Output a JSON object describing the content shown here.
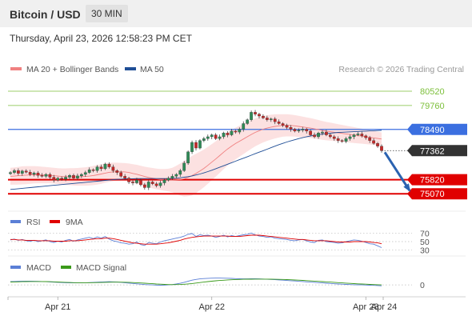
{
  "header": {
    "title": "Bitcoin / USD",
    "interval": "30 MIN"
  },
  "datetime": "Thursday, April 23, 2026 12:58:23 PM CET",
  "legend": {
    "items": [
      {
        "label": "MA 20 + Bollinger Bands",
        "color": "#f08080"
      },
      {
        "label": "MA 50",
        "color": "#1f4e96"
      }
    ],
    "credit": "Research © 2026 Trading Central"
  },
  "chart_data": [
    {
      "type": "candlestick",
      "title": "Bitcoin / USD",
      "interval": "30 MIN",
      "x_ticks": [
        "Apr 21",
        "Apr 22",
        "Apr 23",
        "Apr 24"
      ],
      "ylim": [
        74400,
        81200
      ],
      "grid": false,
      "levels": [
        {
          "value": 80520,
          "label": "80520",
          "kind": "resistance",
          "color": "#7cbf3a"
        },
        {
          "value": 79760,
          "label": "79760",
          "kind": "resistance",
          "color": "#7cbf3a"
        },
        {
          "value": 78490,
          "label": "78490",
          "kind": "pivot",
          "color": "#3b6fe0"
        },
        {
          "value": 77362,
          "label": "77362",
          "kind": "last",
          "color": "#333333"
        },
        {
          "value": 75820,
          "label": "75820",
          "kind": "support",
          "color": "#e00000"
        },
        {
          "value": 75070,
          "label": "75070",
          "kind": "support",
          "color": "#e00000"
        }
      ],
      "close": [
        76200,
        76300,
        76150,
        76280,
        76220,
        76100,
        76180,
        76050,
        76000,
        76100,
        75950,
        75800,
        75900,
        75850,
        75950,
        76050,
        75900,
        76020,
        76100,
        76200,
        76350,
        76300,
        76500,
        76400,
        76650,
        76500,
        76300,
        76200,
        76000,
        75900,
        75700,
        75650,
        75800,
        75550,
        75400,
        75700,
        75600,
        75500,
        75650,
        75800,
        75900,
        76000,
        76100,
        76300,
        76700,
        77300,
        77800,
        77500,
        77900,
        78000,
        78100,
        78200,
        78000,
        78100,
        78300,
        78200,
        78400,
        78350,
        78500,
        78800,
        79000,
        79400,
        79300,
        79200,
        79100,
        79000,
        79050,
        78900,
        78800,
        78700,
        78600,
        78500,
        78400,
        78450,
        78500,
        78400,
        78200,
        78100,
        78300,
        78350,
        78200,
        78100,
        78000,
        77900,
        77850,
        78000,
        78100,
        78200,
        78250,
        78150,
        78050,
        77900,
        77750,
        77600,
        77362
      ],
      "ma20": {
        "color": "#f08080",
        "values": [
          76000,
          76010,
          76030,
          76050,
          76060,
          76070,
          76080,
          76080,
          76070,
          76060,
          76050,
          76030,
          76010,
          75990,
          75980,
          75980,
          75970,
          75970,
          75980,
          75990,
          76010,
          76040,
          76080,
          76120,
          76170,
          76210,
          76230,
          76240,
          76240,
          76230,
          76200,
          76150,
          76110,
          76050,
          75990,
          75940,
          75900,
          75860,
          75830,
          75810,
          75800,
          75800,
          75810,
          75830,
          75870,
          75940,
          76040,
          76150,
          76280,
          76420,
          76580,
          76750,
          76920,
          77100,
          77280,
          77450,
          77600,
          77740,
          77860,
          77980,
          78100,
          78220,
          78330,
          78420,
          78500,
          78560,
          78610,
          78650,
          78680,
          78700,
          78710,
          78700,
          78680,
          78650,
          78620,
          78590,
          78560,
          78520,
          78480,
          78440,
          78400,
          78370,
          78340,
          78310,
          78280,
          78250,
          78220,
          78190,
          78160,
          78130,
          78100,
          78070,
          78040,
          78010,
          77980
        ]
      },
      "bollinger": {
        "color": "#fbdada",
        "width": [
          450,
          460,
          470,
          480,
          480,
          470,
          460,
          450,
          440,
          430,
          420,
          420,
          420,
          430,
          440,
          450,
          460,
          470,
          480,
          490,
          500,
          510,
          520,
          520,
          510,
          500,
          490,
          480,
          470,
          470,
          480,
          490,
          500,
          510,
          520,
          530,
          540,
          550,
          560,
          580,
          600,
          650,
          750,
          850,
          950,
          1000,
          1050,
          1050,
          1020,
          1000,
          980,
          960,
          940,
          920,
          900,
          880,
          860,
          840,
          820,
          800,
          780,
          760,
          740,
          720,
          700,
          680,
          660,
          640,
          620,
          600,
          590,
          580,
          570,
          560,
          550,
          540,
          530,
          520,
          510,
          500,
          490,
          480,
          470,
          460,
          450,
          440,
          430,
          420,
          410,
          400,
          390,
          380,
          370,
          360,
          350
        ]
      },
      "ma50": {
        "color": "#1f4e96",
        "values": [
          75300,
          75320,
          75340,
          75360,
          75380,
          75400,
          75420,
          75440,
          75460,
          75480,
          75500,
          75520,
          75540,
          75560,
          75580,
          75600,
          75620,
          75640,
          75660,
          75680,
          75700,
          75720,
          75740,
          75760,
          75780,
          75800,
          75820,
          75840,
          75850,
          75860,
          75870,
          75870,
          75880,
          75880,
          75880,
          75880,
          75880,
          75880,
          75880,
          75880,
          75880,
          75890,
          75900,
          75920,
          75950,
          75980,
          76020,
          76070,
          76120,
          76180,
          76250,
          76320,
          76400,
          76480,
          76560,
          76640,
          76720,
          76800,
          76880,
          76960,
          77040,
          77120,
          77200,
          77280,
          77360,
          77440,
          77520,
          77600,
          77680,
          77750,
          77820,
          77880,
          77940,
          78000,
          78050,
          78100,
          78140,
          78180,
          78210,
          78240,
          78270,
          78290,
          78310,
          78330,
          78340,
          78350,
          78360,
          78370,
          78380,
          78390,
          78400,
          78410,
          78420,
          78430,
          78440
        ]
      },
      "forecast": {
        "from": 77362,
        "to": 75070
      }
    },
    {
      "type": "line",
      "legend": [
        {
          "name": "RSI",
          "color": "#5b7fd6"
        },
        {
          "name": "9MA",
          "color": "#e00000"
        }
      ],
      "ylim": [
        20,
        80
      ],
      "levels": [
        70,
        50,
        30
      ],
      "series": [
        {
          "name": "RSI",
          "color": "#5b7fd6",
          "values": [
            54,
            56,
            53,
            55,
            52,
            51,
            53,
            50,
            52,
            54,
            50,
            48,
            51,
            49,
            53,
            55,
            51,
            54,
            56,
            58,
            60,
            57,
            61,
            58,
            62,
            56,
            52,
            50,
            47,
            46,
            44,
            45,
            49,
            43,
            41,
            48,
            46,
            45,
            49,
            52,
            54,
            56,
            58,
            60,
            63,
            67,
            69,
            62,
            66,
            64,
            65,
            63,
            60,
            62,
            65,
            61,
            64,
            62,
            64,
            66,
            67,
            70,
            66,
            63,
            62,
            60,
            61,
            58,
            57,
            56,
            55,
            53,
            52,
            54,
            55,
            52,
            49,
            48,
            53,
            54,
            50,
            49,
            48,
            46,
            47,
            50,
            52,
            54,
            53,
            51,
            48,
            45,
            44,
            40,
            36
          ]
        },
        {
          "name": "9MA",
          "color": "#e00000",
          "values": [
            55,
            55,
            54,
            54,
            53,
            53,
            53,
            52,
            52,
            52,
            52,
            51,
            51,
            51,
            51,
            52,
            52,
            52,
            53,
            54,
            55,
            56,
            57,
            57,
            58,
            58,
            57,
            55,
            53,
            51,
            49,
            47,
            46,
            45,
            44,
            44,
            44,
            44,
            45,
            46,
            47,
            49,
            51,
            53,
            56,
            58,
            60,
            61,
            62,
            63,
            63,
            63,
            63,
            63,
            63,
            63,
            62,
            62,
            62,
            63,
            64,
            65,
            65,
            65,
            64,
            63,
            62,
            61,
            60,
            59,
            58,
            57,
            56,
            55,
            55,
            54,
            53,
            52,
            52,
            52,
            52,
            51,
            50,
            49,
            49,
            49,
            49,
            50,
            50,
            50,
            50,
            49,
            48,
            47,
            45
          ]
        }
      ]
    },
    {
      "type": "line",
      "legend": [
        {
          "name": "MACD",
          "color": "#5b7fd6"
        },
        {
          "name": "MACD Signal",
          "color": "#3a9a1a"
        }
      ],
      "ylim": [
        -520,
        620
      ],
      "levels": [
        0
      ],
      "series": [
        {
          "name": "MACD",
          "color": "#5b7fd6",
          "values": [
            180,
            190,
            200,
            210,
            210,
            205,
            200,
            195,
            185,
            175,
            165,
            150,
            140,
            130,
            120,
            115,
            110,
            110,
            115,
            120,
            130,
            140,
            150,
            160,
            170,
            175,
            170,
            160,
            140,
            120,
            100,
            80,
            60,
            40,
            20,
            10,
            0,
            -10,
            -15,
            -10,
            0,
            20,
            50,
            90,
            140,
            200,
            260,
            300,
            330,
            350,
            360,
            370,
            375,
            375,
            370,
            365,
            355,
            345,
            335,
            330,
            330,
            335,
            335,
            330,
            320,
            310,
            300,
            290,
            275,
            260,
            245,
            230,
            215,
            200,
            185,
            170,
            155,
            140,
            125,
            110,
            95,
            80,
            65,
            50,
            40,
            30,
            20,
            10,
            5,
            0,
            -5,
            -15,
            -25,
            -35,
            -50
          ]
        },
        {
          "name": "MACD Signal",
          "color": "#3a9a1a",
          "values": [
            160,
            165,
            170,
            175,
            180,
            185,
            185,
            185,
            185,
            180,
            175,
            170,
            160,
            150,
            140,
            132,
            125,
            120,
            118,
            118,
            120,
            124,
            128,
            134,
            140,
            146,
            150,
            152,
            150,
            146,
            140,
            130,
            120,
            108,
            94,
            80,
            66,
            52,
            40,
            28,
            20,
            16,
            18,
            24,
            36,
            54,
            78,
            104,
            130,
            156,
            180,
            204,
            224,
            242,
            258,
            272,
            284,
            294,
            302,
            308,
            312,
            315,
            318,
            319,
            319,
            317,
            314,
            310,
            305,
            298,
            290,
            281,
            271,
            260,
            248,
            236,
            223,
            210,
            196,
            182,
            168,
            154,
            140,
            126,
            112,
            98,
            85,
            72,
            60,
            50,
            40,
            30,
            20,
            10,
            0
          ]
        }
      ]
    }
  ],
  "colors": {
    "bull": "#2e8b57",
    "bear": "#c62828",
    "arrow": "#2a62b0"
  }
}
